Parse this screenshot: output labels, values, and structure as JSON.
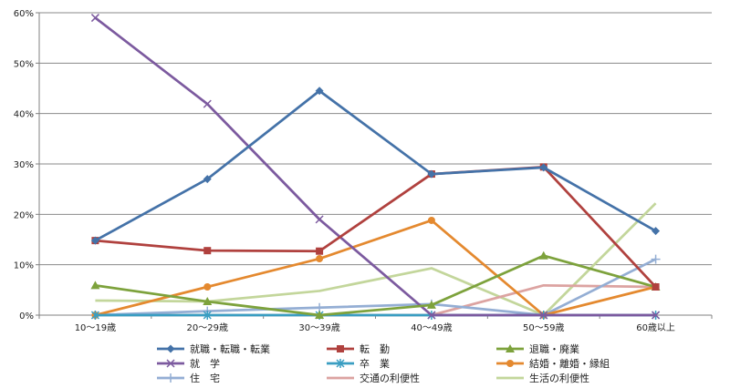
{
  "chart_data": {
    "type": "line",
    "title": "",
    "xlabel": "",
    "ylabel": "",
    "ylim": [
      0,
      60
    ],
    "yticks": [
      0,
      10,
      20,
      30,
      40,
      50,
      60
    ],
    "ytick_labels": [
      "0%",
      "10%",
      "20%",
      "30%",
      "40%",
      "50%",
      "60%"
    ],
    "grid": true,
    "legend_position": "bottom",
    "categories": [
      "10～19歳",
      "20～29歳",
      "30～39歳",
      "40～49歳",
      "50～59歳",
      "60歳以上"
    ],
    "series": [
      {
        "name": "就職・転職・転業",
        "color": "#4472A8",
        "marker": "diamond",
        "values": [
          14.8,
          27.0,
          44.5,
          28.0,
          29.3,
          16.7
        ]
      },
      {
        "name": "転　勤",
        "color": "#B0413E",
        "marker": "square",
        "values": [
          14.8,
          12.8,
          12.7,
          28.0,
          29.4,
          5.6
        ]
      },
      {
        "name": "退職・廃業",
        "color": "#7DA23C",
        "marker": "triangle",
        "values": [
          5.9,
          2.7,
          0.0,
          2.0,
          11.8,
          5.6
        ]
      },
      {
        "name": "就　学",
        "color": "#7C5A9F",
        "marker": "x",
        "values": [
          59.0,
          41.9,
          19.0,
          0.0,
          0.0,
          0.0
        ]
      },
      {
        "name": "卒　業",
        "color": "#3A9EC2",
        "marker": "star",
        "values": [
          0.0,
          0.0,
          0.0,
          0.0,
          0.0,
          0.0
        ]
      },
      {
        "name": "結婚・離婚・縁組",
        "color": "#E4892F",
        "marker": "circle",
        "values": [
          0.0,
          5.6,
          11.2,
          18.8,
          0.0,
          5.6
        ]
      },
      {
        "name": "住　宅",
        "color": "#94AED4",
        "marker": "plus",
        "values": [
          0.0,
          0.8,
          1.5,
          2.2,
          0.0,
          11.1
        ]
      },
      {
        "name": "交通の利便性",
        "color": "#DCA3A1",
        "marker": "none",
        "values": [
          0.0,
          0.0,
          0.0,
          0.0,
          5.9,
          5.6
        ]
      },
      {
        "name": "生活の利便性",
        "color": "#C3D69B",
        "marker": "none",
        "values": [
          2.9,
          2.7,
          4.8,
          9.3,
          0.0,
          22.2
        ]
      }
    ]
  }
}
